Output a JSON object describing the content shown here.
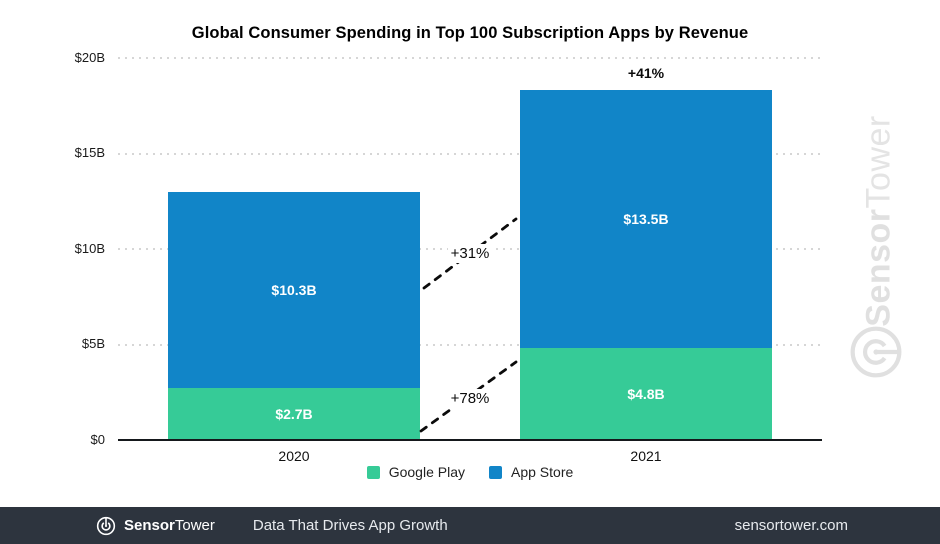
{
  "chart_data": {
    "type": "bar",
    "stacked": true,
    "title": "Global Consumer Spending in Top 100 Subscription Apps by Revenue",
    "categories": [
      "2020",
      "2021"
    ],
    "series": [
      {
        "name": "Google Play",
        "color": "#36cb97",
        "values": [
          2.7,
          4.8
        ],
        "value_labels": [
          "$2.7B",
          "$4.8B"
        ]
      },
      {
        "name": "App Store",
        "color": "#1185c8",
        "values": [
          10.3,
          13.5
        ],
        "value_labels": [
          "$10.3B",
          "$13.5B"
        ]
      }
    ],
    "totals": [
      13.0,
      18.3
    ],
    "unit": "USD billions",
    "y_axis": {
      "ticks": [
        0,
        5,
        10,
        15,
        20
      ],
      "tick_labels": [
        "$0",
        "$5B",
        "$10B",
        "$15B",
        "$20B"
      ],
      "max": 20
    },
    "annotations": {
      "total_growth_2021": "+41%",
      "app_store_growth": "+31%",
      "google_play_growth": "+78%"
    },
    "legend_position": "bottom",
    "grid": "dotted-horizontal"
  },
  "watermark": {
    "brand_bold": "Sensor",
    "brand_light": "Tower"
  },
  "footer": {
    "brand_bold": "Sensor",
    "brand_regular": "Tower",
    "tagline": "Data That Drives App Growth",
    "website": "sensortower.com",
    "background": "#2d343e"
  },
  "colors": {
    "google_play": "#36cb97",
    "app_store": "#1185c8",
    "annotation_text": "#0b0b0b",
    "gridline": "#c9c9c9",
    "watermark": "#e0e0e0"
  }
}
